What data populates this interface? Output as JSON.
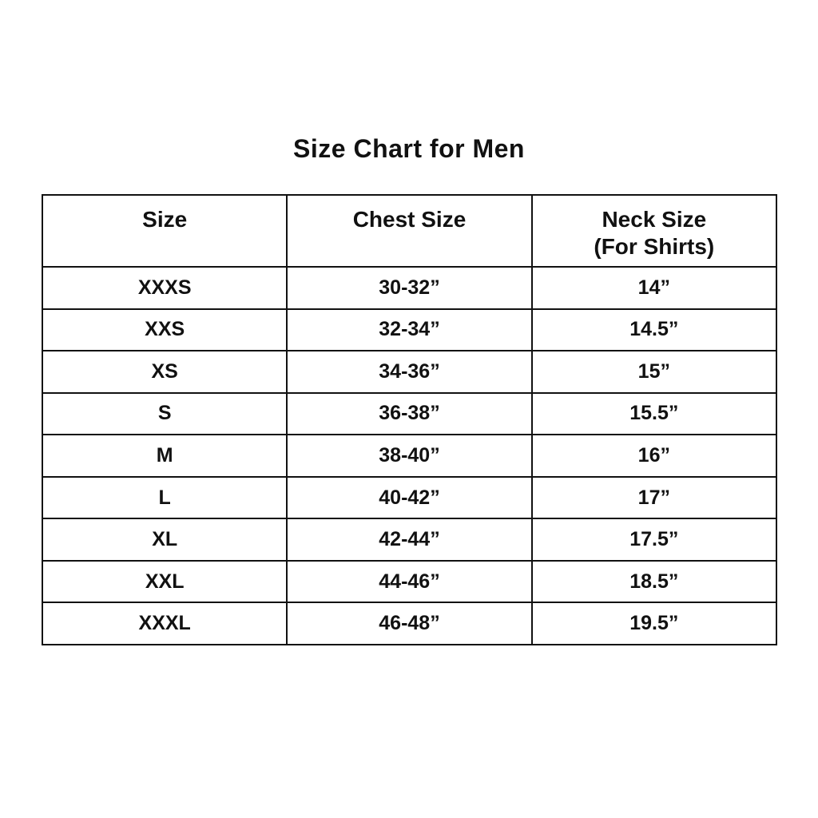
{
  "page": {
    "title": "Size Chart for Men"
  },
  "colors": {
    "background": "#ffffff",
    "text": "#111111",
    "border": "#111111"
  },
  "table": {
    "columns": [
      {
        "label": "Size",
        "sublabel": ""
      },
      {
        "label": "Chest Size",
        "sublabel": ""
      },
      {
        "label": "Neck Size",
        "sublabel": "(For Shirts)"
      }
    ],
    "rows": [
      [
        "XXXS",
        "30-32”",
        "14”"
      ],
      [
        "XXS",
        "32-34”",
        "14.5”"
      ],
      [
        "XS",
        "34-36”",
        "15”"
      ],
      [
        "S",
        "36-38”",
        "15.5”"
      ],
      [
        "M",
        "38-40”",
        "16”"
      ],
      [
        "L",
        "40-42”",
        "17”"
      ],
      [
        "XL",
        "42-44”",
        "17.5”"
      ],
      [
        "XXL",
        "44-46”",
        "18.5”"
      ],
      [
        "XXXL",
        "46-48”",
        "19.5”"
      ]
    ]
  },
  "chart_data": {
    "type": "table",
    "title": "Size Chart for Men",
    "columns": [
      "Size",
      "Chest Size",
      "Neck Size (For Shirts)"
    ],
    "rows": [
      [
        "XXXS",
        "30-32”",
        "14”"
      ],
      [
        "XXS",
        "32-34”",
        "14.5”"
      ],
      [
        "XS",
        "34-36”",
        "15”"
      ],
      [
        "S",
        "36-38”",
        "15.5”"
      ],
      [
        "M",
        "38-40”",
        "16”"
      ],
      [
        "L",
        "40-42”",
        "17”"
      ],
      [
        "XL",
        "42-44”",
        "17.5”"
      ],
      [
        "XXL",
        "44-46”",
        "18.5”"
      ],
      [
        "XXXL",
        "46-48”",
        "19.5”"
      ]
    ]
  }
}
